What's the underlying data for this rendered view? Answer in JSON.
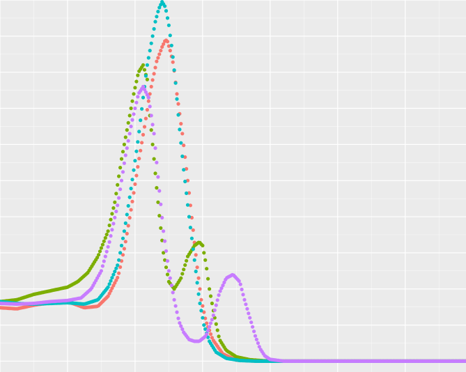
{
  "chart_data": {
    "type": "scatter",
    "title": "",
    "xlabel": "",
    "ylabel": "",
    "xlim": [
      0,
      6.9
    ],
    "ylim": [
      -0.03,
      1.0
    ],
    "grid": true,
    "legend": "none",
    "background": "#EBEBEB",
    "gridline_color": "#FFFFFF",
    "series": [
      {
        "color": "#F8766D",
        "x": [
          0.0,
          0.25,
          0.5,
          0.75,
          1.0,
          1.25,
          1.45,
          1.6,
          1.75,
          1.85,
          1.95,
          2.05,
          2.15,
          2.2,
          2.25,
          2.32,
          2.4,
          2.45,
          2.48,
          2.52,
          2.57,
          2.62,
          2.7,
          2.78,
          2.85,
          2.92,
          2.98,
          3.05,
          3.15,
          3.3,
          3.5,
          3.8,
          4.2,
          5.0,
          6.0,
          6.9
        ],
        "y": [
          0.148,
          0.145,
          0.155,
          0.162,
          0.165,
          0.148,
          0.152,
          0.18,
          0.235,
          0.32,
          0.43,
          0.55,
          0.66,
          0.72,
          0.77,
          0.83,
          0.87,
          0.89,
          0.885,
          0.86,
          0.82,
          0.74,
          0.63,
          0.5,
          0.38,
          0.26,
          0.17,
          0.11,
          0.06,
          0.02,
          0.003,
          0.0,
          0.0,
          0.0,
          0.0,
          0.0
        ]
      },
      {
        "color": "#7CAE00",
        "x": [
          0.0,
          0.25,
          0.5,
          0.75,
          1.0,
          1.15,
          1.3,
          1.45,
          1.6,
          1.7,
          1.8,
          1.9,
          1.98,
          2.05,
          2.12,
          2.18,
          2.22,
          2.28,
          2.35,
          2.42,
          2.5,
          2.58,
          2.68,
          2.78,
          2.88,
          2.95,
          3.0,
          3.05,
          3.1,
          3.18,
          3.25,
          3.35,
          3.5,
          3.7,
          4.0,
          5.0,
          6.0,
          6.9
        ],
        "y": [
          0.165,
          0.17,
          0.185,
          0.195,
          0.205,
          0.22,
          0.245,
          0.29,
          0.36,
          0.44,
          0.56,
          0.66,
          0.74,
          0.8,
          0.82,
          0.78,
          0.68,
          0.56,
          0.42,
          0.3,
          0.22,
          0.2,
          0.23,
          0.29,
          0.32,
          0.33,
          0.32,
          0.27,
          0.2,
          0.12,
          0.06,
          0.03,
          0.012,
          0.004,
          0.0,
          0.0,
          0.0,
          0.0
        ]
      },
      {
        "color": "#00BFC4",
        "x": [
          0.0,
          0.25,
          0.5,
          0.75,
          1.0,
          1.25,
          1.45,
          1.6,
          1.75,
          1.85,
          1.95,
          2.05,
          2.12,
          2.18,
          2.25,
          2.3,
          2.35,
          2.4,
          2.45,
          2.5,
          2.55,
          2.6,
          2.65,
          2.72,
          2.8,
          2.88,
          2.95,
          3.02,
          3.1,
          3.2,
          3.35,
          3.55,
          3.8,
          4.2,
          5.0,
          6.0,
          6.9
        ],
        "y": [
          0.165,
          0.16,
          0.158,
          0.16,
          0.162,
          0.158,
          0.17,
          0.205,
          0.27,
          0.37,
          0.49,
          0.62,
          0.73,
          0.82,
          0.89,
          0.94,
          0.975,
          0.995,
          0.98,
          0.93,
          0.86,
          0.77,
          0.66,
          0.53,
          0.4,
          0.28,
          0.17,
          0.1,
          0.055,
          0.025,
          0.008,
          0.002,
          0.0,
          0.0,
          0.0,
          0.0,
          0.0
        ]
      },
      {
        "color": "#C77CFF",
        "x": [
          0.0,
          0.25,
          0.5,
          0.75,
          1.0,
          1.2,
          1.35,
          1.5,
          1.62,
          1.75,
          1.85,
          1.95,
          2.05,
          2.12,
          2.2,
          2.28,
          2.35,
          2.42,
          2.5,
          2.58,
          2.65,
          2.72,
          2.8,
          2.88,
          2.95,
          3.05,
          3.15,
          3.25,
          3.35,
          3.45,
          3.55,
          3.62,
          3.7,
          3.78,
          3.85,
          3.92,
          4.0,
          4.2,
          5.0,
          6.0,
          6.9
        ],
        "y": [
          0.16,
          0.158,
          0.16,
          0.165,
          0.168,
          0.175,
          0.2,
          0.25,
          0.33,
          0.44,
          0.56,
          0.66,
          0.74,
          0.76,
          0.73,
          0.63,
          0.49,
          0.36,
          0.25,
          0.17,
          0.11,
          0.08,
          0.06,
          0.055,
          0.055,
          0.07,
          0.12,
          0.19,
          0.23,
          0.24,
          0.22,
          0.17,
          0.12,
          0.07,
          0.035,
          0.015,
          0.005,
          0.0,
          0.0,
          0.0,
          0.0
        ]
      }
    ]
  }
}
